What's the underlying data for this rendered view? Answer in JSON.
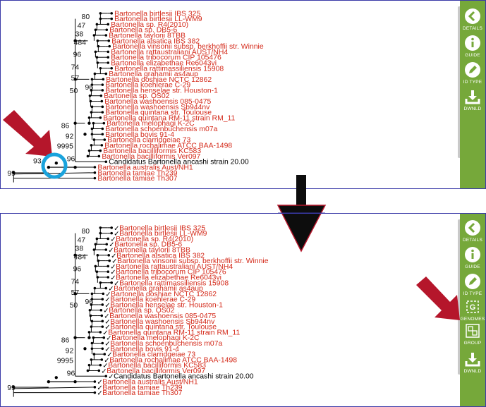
{
  "panels": {
    "top": {
      "leaves": [
        "Bartonella birtlesii IBS 325",
        "Bartonella birtlesii LL-WM9",
        "Bartonella sp. R4(2010)",
        "Bartonella sp. DB5-6",
        "Bartonella taylorii 8TBB",
        "Bartonella alsatica IBS 382",
        "Bartonella vinsonii subsp. berkhoffii str. Winnie",
        "Bartonella rattaustraliani AUST/NH4",
        "Bartonella tribocorum CIP 105476",
        "Bartonella elizabethae Re6043vi",
        "Bartonella rattimassiliensis 15908",
        "Bartonella grahamii as4aup",
        "Bartonella doshiae NCTC 12862",
        "Bartonella koehlerae C-29",
        "Bartonella henselae str. Houston-1",
        "Bartonella sp. OS02",
        "Bartonella washoensis 085-0475",
        "Bartonella washoensis Sb944nv",
        "Bartonella quintana str. Toulouse",
        "Bartonella quintana RM-11 strain RM_11",
        "Bartonella melophagi K-2C",
        "Bartonella schoenbuchensis m07a",
        "Bartonella bovis 91-4",
        "Bartonella clarridgeiae 73",
        "Bartonella rochalimae ATCC BAA-1498",
        "Bartonella bacilliformis KC583",
        "Bartonella bacilliformis Ver097",
        "Candidatus Bartonella ancashi strain 20.00",
        "Bartonella australis Aust/NH1",
        "Bartonella tamiae Th239",
        "Bartonella tamiae Th307"
      ],
      "bootstraps": [
        "80",
        "47",
        "38",
        "484",
        "96",
        "74",
        "57",
        "50",
        "96",
        "86",
        "92",
        "9995",
        "96",
        "93",
        "99"
      ]
    },
    "bottom": {
      "leaves": [
        "Bartonella birtlesii IBS 325",
        "Bartonella birtlesii LL-WM9",
        "Bartonella sp. R4(2010)",
        "Bartonella sp. DB5-6",
        "Bartonella taylorii 8TBB",
        "Bartonella alsatica IBS 382",
        "Bartonella vinsonii subsp. berkhoffii str. Winnie",
        "Bartonella rattaustraliani AUST/NH4",
        "Bartonella tribocorum CIP 105476",
        "Bartonella elizabethae Re6043vi",
        "Bartonella rattimassiliensis 15908",
        "Bartonella grahamii as4aup",
        "Bartonella doshiae NCTC 12862",
        "Bartonella koehlerae C-29",
        "Bartonella henselae str. Houston-1",
        "Bartonella sp. OS02",
        "Bartonella washoensis 085-0475",
        "Bartonella washoensis Sb944nv",
        "Bartonella quintana str. Toulouse",
        "Bartonella quintana RM-11 strain RM_11",
        "Bartonella melophagi K-2C",
        "Bartonella schoenbuchensis m07a",
        "Bartonella bovis 91-4",
        "Bartonella clarridgeiae 73",
        "Bartonella rochalimae ATCC BAA-1498",
        "Bartonella bacilliformis KC583",
        "Bartonella bacilliformis Ver097",
        "Candidatus Bartonella ancashi strain 20.00",
        "Bartonella australis Aust/NH1",
        "Bartonella tamiae Th239",
        "Bartonella tamiae Th307"
      ],
      "bootstraps": [
        "80",
        "47",
        "38",
        "484",
        "96",
        "74",
        "57",
        "50",
        "96",
        "86",
        "92",
        "9995",
        "96",
        "99"
      ],
      "checkmark": "✓"
    }
  },
  "sidebar_top": [
    {
      "label": "DETAILS",
      "icon": "chevron-left-icon"
    },
    {
      "label": "GUIDE",
      "icon": "info-icon"
    },
    {
      "label": "ID TYPE",
      "icon": "pencil-icon"
    },
    {
      "label": "DWNLD",
      "icon": "download-icon"
    }
  ],
  "sidebar_bottom": [
    {
      "label": "DETAILS",
      "icon": "chevron-left-icon"
    },
    {
      "label": "GUIDE",
      "icon": "info-icon"
    },
    {
      "label": "ID TYPE",
      "icon": "pencil-icon"
    },
    {
      "label": "GENOMES",
      "icon": "genomes-icon",
      "icon_text": "G"
    },
    {
      "label": "GROUP",
      "icon": "group-icon"
    },
    {
      "label": "DWNLD",
      "icon": "download-icon"
    }
  ],
  "colors": {
    "leaf_text": "#d42a1a",
    "sidebar": "#76a83a",
    "annotation_arrow": "#b5162b",
    "highlight_circle": "#1aa3dc",
    "panel_border": "#3a3aa8"
  }
}
